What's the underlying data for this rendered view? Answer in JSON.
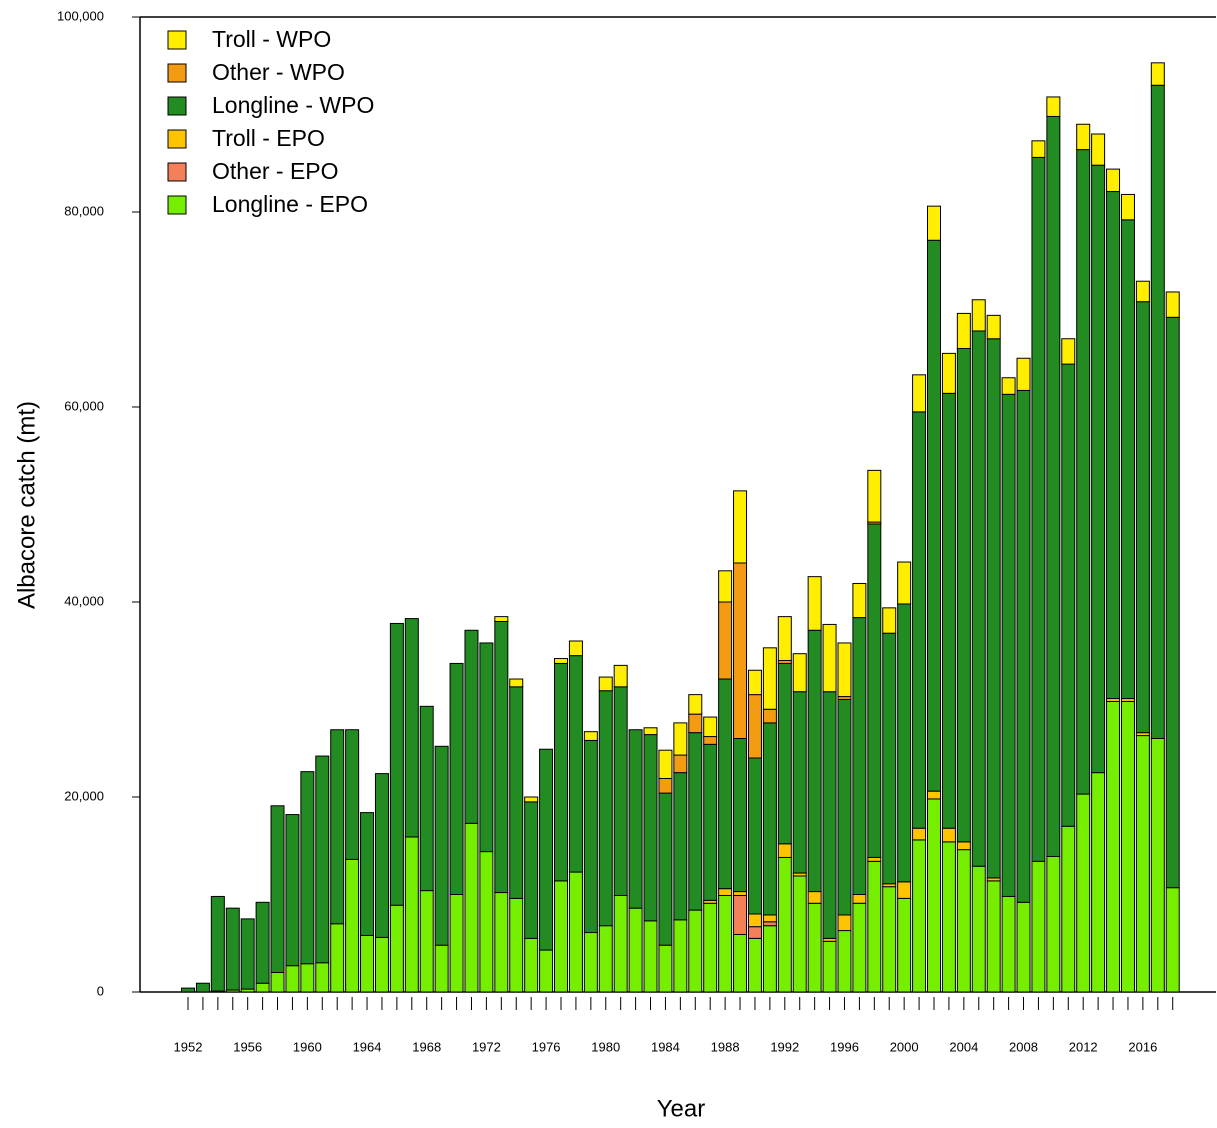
{
  "chart_data": {
    "type": "stacked-bar",
    "x_label": "Year",
    "y_label": "Albacore catch (mt)",
    "categories": [
      "1952",
      null,
      null,
      null,
      "1956",
      null,
      null,
      null,
      "1960",
      null,
      null,
      null,
      "1964",
      null,
      null,
      null,
      "1968",
      null,
      null,
      null,
      "1972",
      null,
      null,
      null,
      "1976",
      null,
      null,
      null,
      "1980",
      null,
      null,
      null,
      "1984",
      null,
      null,
      null,
      "1988",
      null,
      null,
      null,
      "1992",
      null,
      null,
      null,
      "1996",
      null,
      null,
      null,
      "2000",
      null,
      null,
      null,
      "2004",
      null,
      null,
      null,
      "2008",
      null,
      null,
      null,
      "2012",
      null,
      null,
      null,
      "2016",
      null,
      null
    ],
    "series": [
      {
        "name": "Longline - EPO",
        "color": "#76ee00",
        "values": [
          0,
          0,
          100,
          200,
          300,
          900,
          2000,
          2700,
          2900,
          3000,
          7000,
          13600,
          5800,
          5600,
          8900,
          15900,
          10400,
          4800,
          10000,
          17300,
          14400,
          10200,
          9600,
          5500,
          4300,
          11400,
          12300,
          6100,
          6800,
          9900,
          8600,
          7300,
          4800,
          7400,
          8400,
          9100,
          9900,
          5900,
          5500,
          6800,
          13800,
          11900,
          9100,
          5200,
          6300,
          9100,
          13400,
          10800,
          9600,
          15600,
          19800,
          15400,
          14600,
          12900,
          11400,
          9800,
          9200,
          13400,
          13900,
          17000,
          20300,
          22500,
          29800,
          29800,
          26300,
          26000,
          10700
        ]
      },
      {
        "name": "Other - EPO",
        "color": "#f4805a",
        "values": [
          0,
          0,
          0,
          0,
          0,
          0,
          0,
          0,
          0,
          0,
          0,
          0,
          0,
          0,
          0,
          0,
          0,
          0,
          0,
          0,
          0,
          0,
          0,
          0,
          0,
          0,
          0,
          0,
          0,
          0,
          0,
          0,
          0,
          0,
          0,
          0,
          0,
          4000,
          1200,
          400,
          0,
          0,
          0,
          0,
          0,
          0,
          0,
          0,
          0,
          0,
          0,
          0,
          0,
          0,
          0,
          0,
          0,
          0,
          0,
          0,
          0,
          0,
          0,
          0,
          0,
          0,
          0
        ]
      },
      {
        "name": "Troll - EPO",
        "color": "#ffc400",
        "values": [
          0,
          0,
          0,
          0,
          0,
          0,
          0,
          0,
          0,
          0,
          0,
          0,
          0,
          0,
          0,
          0,
          0,
          0,
          0,
          0,
          0,
          0,
          0,
          0,
          0,
          0,
          0,
          0,
          0,
          0,
          0,
          0,
          0,
          0,
          0,
          300,
          700,
          400,
          1300,
          700,
          1400,
          300,
          1200,
          300,
          1600,
          900,
          400,
          300,
          1700,
          1200,
          800,
          1400,
          800,
          0,
          300,
          0,
          0,
          0,
          0,
          0,
          0,
          0,
          300,
          300,
          300,
          0,
          0
        ]
      },
      {
        "name": "Longline - WPO",
        "color": "#228b22",
        "values": [
          400,
          900,
          9700,
          8400,
          7200,
          8300,
          17100,
          15500,
          19700,
          21200,
          19900,
          13300,
          12600,
          16800,
          28900,
          22400,
          18900,
          20400,
          23700,
          19800,
          21400,
          27800,
          21700,
          14000,
          20600,
          22300,
          22200,
          19700,
          24100,
          21400,
          18300,
          19100,
          15600,
          15100,
          18200,
          16000,
          21500,
          15700,
          16000,
          19700,
          18500,
          18600,
          26800,
          25300,
          22100,
          28400,
          34200,
          25700,
          28500,
          42700,
          56500,
          44600,
          50600,
          54900,
          55300,
          51500,
          52500,
          72200,
          75900,
          47400,
          66100,
          62300,
          52000,
          49100,
          44200,
          67000,
          58500
        ]
      },
      {
        "name": "Other - WPO",
        "color": "#f39c12",
        "values": [
          0,
          0,
          0,
          0,
          0,
          0,
          0,
          0,
          0,
          0,
          0,
          0,
          0,
          0,
          0,
          0,
          0,
          0,
          0,
          0,
          0,
          0,
          0,
          0,
          0,
          0,
          0,
          0,
          0,
          0,
          0,
          0,
          1500,
          1800,
          1900,
          800,
          7900,
          18000,
          6500,
          1400,
          300,
          0,
          0,
          0,
          300,
          0,
          200,
          0,
          0,
          0,
          0,
          0,
          0,
          0,
          0,
          0,
          0,
          0,
          0,
          0,
          0,
          0,
          0,
          0,
          0,
          0,
          0
        ]
      },
      {
        "name": "Troll - WPO",
        "color": "#ffee00",
        "values": [
          0,
          0,
          0,
          0,
          0,
          0,
          0,
          0,
          0,
          0,
          0,
          0,
          0,
          0,
          0,
          0,
          0,
          0,
          0,
          0,
          0,
          500,
          800,
          500,
          0,
          500,
          1500,
          900,
          1400,
          2200,
          0,
          700,
          2900,
          3300,
          2000,
          2000,
          3200,
          7400,
          2500,
          6300,
          4500,
          3900,
          5500,
          6900,
          5500,
          3500,
          5300,
          2600,
          4300,
          3800,
          3500,
          4100,
          3600,
          3200,
          2400,
          1700,
          3300,
          1700,
          2000,
          2600,
          2600,
          3200,
          2300,
          2600,
          2100,
          2300,
          2600
        ]
      }
    ],
    "ylim": [
      0,
      100000
    ],
    "yticks": [
      0,
      {
        "value": 20000,
        "label": "20,000"
      },
      {
        "value": 40000,
        "label": "40,000"
      },
      {
        "value": 60000,
        "label": "60,000"
      },
      {
        "value": 80000,
        "label": "80,000"
      },
      {
        "value": 100000,
        "label": "100,000"
      }
    ],
    "legend": "top-left"
  }
}
